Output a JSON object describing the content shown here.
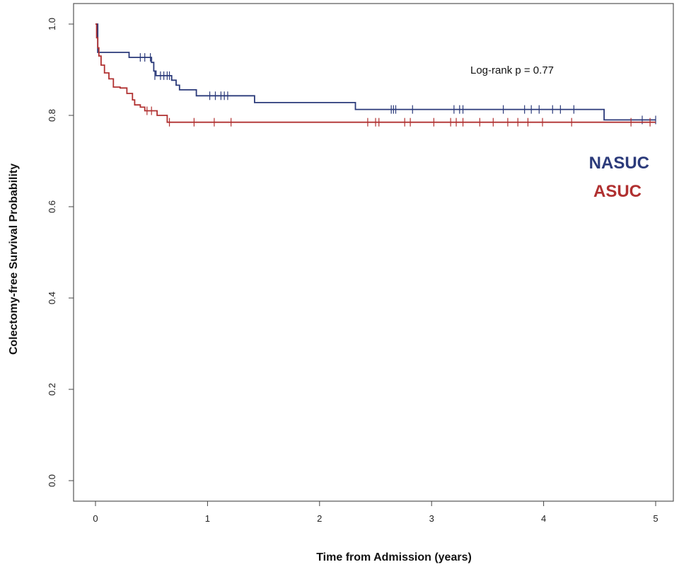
{
  "chart_data": {
    "type": "line",
    "subtype": "kaplan-meier step curve",
    "xlabel": "Time from Admission (years)",
    "ylabel": "Colectomy-free Survival Probability",
    "xlim": [
      0,
      5
    ],
    "ylim": [
      0,
      1
    ],
    "x_ticks": [
      0,
      1,
      2,
      3,
      4,
      5
    ],
    "x_tick_labels": [
      "0",
      "1",
      "2",
      "3",
      "4",
      "5"
    ],
    "y_ticks": [
      0.0,
      0.2,
      0.4,
      0.6,
      0.8,
      1.0
    ],
    "y_tick_labels": [
      "0.0",
      "0.2",
      "0.4",
      "0.6",
      "0.8",
      "1.0"
    ],
    "grid": false,
    "legend_position": "right",
    "annotation": "Log-rank p = 0.77",
    "series": [
      {
        "name": "NASUC",
        "color": "#2b3a7a",
        "steps": [
          [
            0,
            1.0
          ],
          [
            0.02,
            0.938
          ],
          [
            0.3,
            0.927
          ],
          [
            0.5,
            0.916
          ],
          [
            0.52,
            0.897
          ],
          [
            0.54,
            0.887
          ],
          [
            0.68,
            0.877
          ],
          [
            0.72,
            0.866
          ],
          [
            0.75,
            0.856
          ],
          [
            0.9,
            0.843
          ],
          [
            1.42,
            0.828
          ],
          [
            2.32,
            0.813
          ],
          [
            4.54,
            0.79
          ],
          [
            5.0,
            0.79
          ]
        ],
        "censored": [
          [
            0.4,
            0.927
          ],
          [
            0.44,
            0.927
          ],
          [
            0.49,
            0.927
          ],
          [
            0.53,
            0.887
          ],
          [
            0.58,
            0.887
          ],
          [
            0.61,
            0.887
          ],
          [
            0.64,
            0.887
          ],
          [
            0.66,
            0.887
          ],
          [
            1.02,
            0.843
          ],
          [
            1.07,
            0.843
          ],
          [
            1.12,
            0.843
          ],
          [
            1.15,
            0.843
          ],
          [
            1.18,
            0.843
          ],
          [
            2.64,
            0.813
          ],
          [
            2.66,
            0.813
          ],
          [
            2.68,
            0.813
          ],
          [
            2.83,
            0.813
          ],
          [
            3.2,
            0.813
          ],
          [
            3.25,
            0.813
          ],
          [
            3.28,
            0.813
          ],
          [
            3.64,
            0.813
          ],
          [
            3.83,
            0.813
          ],
          [
            3.89,
            0.813
          ],
          [
            3.96,
            0.813
          ],
          [
            4.08,
            0.813
          ],
          [
            4.15,
            0.813
          ],
          [
            4.27,
            0.813
          ],
          [
            4.88,
            0.79
          ],
          [
            5.0,
            0.79
          ]
        ]
      },
      {
        "name": "ASUC",
        "color": "#b03030",
        "steps": [
          [
            0,
            1.0
          ],
          [
            0.01,
            0.97
          ],
          [
            0.02,
            0.948
          ],
          [
            0.03,
            0.93
          ],
          [
            0.05,
            0.91
          ],
          [
            0.08,
            0.893
          ],
          [
            0.12,
            0.88
          ],
          [
            0.16,
            0.862
          ],
          [
            0.22,
            0.86
          ],
          [
            0.28,
            0.848
          ],
          [
            0.33,
            0.834
          ],
          [
            0.35,
            0.823
          ],
          [
            0.4,
            0.818
          ],
          [
            0.44,
            0.81
          ],
          [
            0.55,
            0.8
          ],
          [
            0.64,
            0.785
          ],
          [
            5.0,
            0.785
          ]
        ],
        "censored": [
          [
            0.46,
            0.81
          ],
          [
            0.5,
            0.81
          ],
          [
            0.66,
            0.785
          ],
          [
            0.88,
            0.785
          ],
          [
            1.06,
            0.785
          ],
          [
            1.21,
            0.785
          ],
          [
            2.43,
            0.785
          ],
          [
            2.5,
            0.785
          ],
          [
            2.53,
            0.785
          ],
          [
            2.76,
            0.785
          ],
          [
            2.81,
            0.785
          ],
          [
            3.02,
            0.785
          ],
          [
            3.17,
            0.785
          ],
          [
            3.22,
            0.785
          ],
          [
            3.28,
            0.785
          ],
          [
            3.43,
            0.785
          ],
          [
            3.55,
            0.785
          ],
          [
            3.68,
            0.785
          ],
          [
            3.77,
            0.785
          ],
          [
            3.86,
            0.785
          ],
          [
            3.99,
            0.785
          ],
          [
            4.25,
            0.785
          ],
          [
            4.78,
            0.785
          ],
          [
            4.95,
            0.785
          ]
        ]
      }
    ]
  }
}
